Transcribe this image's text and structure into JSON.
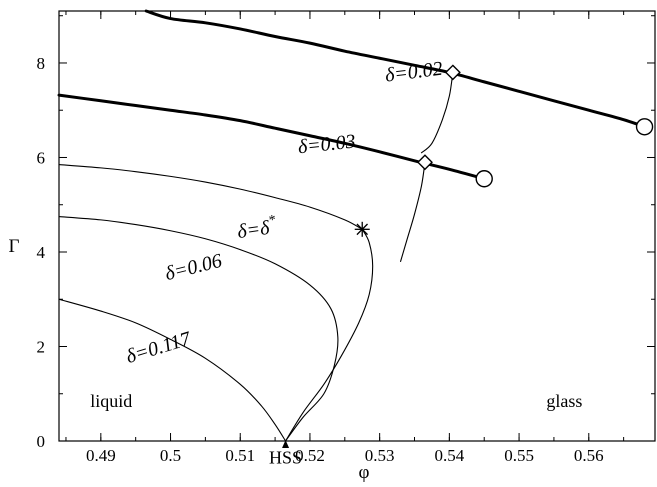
{
  "chart_data": {
    "type": "line",
    "xlabel": "φ",
    "ylabel": "Γ",
    "xlim": [
      0.484,
      0.5695
    ],
    "ylim": [
      0,
      9.1
    ],
    "xticks": [
      "0.49",
      "0.5",
      "0.51",
      "0.52",
      "0.53",
      "0.54",
      "0.55",
      "0.56"
    ],
    "yticks": [
      "0",
      "2",
      "4",
      "6",
      "8"
    ],
    "grid": false,
    "series": [
      {
        "name": "δ=0.02",
        "label_text": "δ=0.02",
        "style": "thick",
        "x": [
          0.4965,
          0.5,
          0.505,
          0.51,
          0.515,
          0.52,
          0.525,
          0.53,
          0.535,
          0.54,
          0.545,
          0.55,
          0.555,
          0.56,
          0.565,
          0.568
        ],
        "y": [
          9.1,
          8.94,
          8.85,
          8.72,
          8.56,
          8.42,
          8.25,
          8.1,
          7.95,
          7.8,
          7.6,
          7.4,
          7.2,
          7.0,
          6.8,
          6.65
        ]
      },
      {
        "name": "δ=0.03",
        "label_text": "δ=0.03",
        "style": "thick",
        "x": [
          0.484,
          0.49,
          0.495,
          0.5,
          0.505,
          0.51,
          0.515,
          0.52,
          0.525,
          0.53,
          0.535,
          0.54,
          0.545
        ],
        "y": [
          7.32,
          7.2,
          7.1,
          7.0,
          6.9,
          6.78,
          6.62,
          6.46,
          6.3,
          6.12,
          5.93,
          5.75,
          5.55
        ]
      },
      {
        "name": "δ=δ*",
        "label_text": "δ=δ",
        "label_sup": "*",
        "style": "thin",
        "x": [
          0.484,
          0.49,
          0.495,
          0.5,
          0.505,
          0.51,
          0.515,
          0.52,
          0.525,
          0.5275
        ],
        "y": [
          5.85,
          5.78,
          5.7,
          5.6,
          5.48,
          5.33,
          5.15,
          4.95,
          4.68,
          4.48
        ]
      },
      {
        "name": "δ=δ* continuation",
        "style": "thin",
        "x": [
          0.5275,
          0.5285,
          0.529,
          0.5285,
          0.527,
          0.5245,
          0.522,
          0.519,
          0.5165
        ],
        "y": [
          4.48,
          4.2,
          3.7,
          3.1,
          2.5,
          1.8,
          1.2,
          0.6,
          0.0
        ]
      },
      {
        "name": "δ=0.06",
        "label_text": "δ=0.06",
        "style": "thin",
        "x": [
          0.484,
          0.49,
          0.495,
          0.5,
          0.505,
          0.51,
          0.515,
          0.52,
          0.523,
          0.524,
          0.5235,
          0.522,
          0.519,
          0.5165
        ],
        "y": [
          4.75,
          4.68,
          4.58,
          4.45,
          4.28,
          4.05,
          3.75,
          3.3,
          2.8,
          2.2,
          1.6,
          1.0,
          0.5,
          0.0
        ]
      },
      {
        "name": "δ=0.117",
        "label_text": "δ=0.117",
        "style": "thin",
        "x": [
          0.484,
          0.49,
          0.495,
          0.5,
          0.505,
          0.51,
          0.513,
          0.515,
          0.5165
        ],
        "y": [
          3.0,
          2.75,
          2.5,
          2.15,
          1.75,
          1.2,
          0.75,
          0.35,
          0.0
        ]
      },
      {
        "name": "diamond line δ=0.02",
        "style": "thin",
        "x": [
          0.5405,
          0.54,
          0.539,
          0.5375,
          0.536
        ],
        "y": [
          7.8,
          7.3,
          6.8,
          6.3,
          6.1
        ]
      },
      {
        "name": "diamond line δ=0.03",
        "style": "thin",
        "x": [
          0.5365,
          0.536,
          0.535,
          0.534,
          0.533
        ],
        "y": [
          5.9,
          5.4,
          4.8,
          4.3,
          3.8
        ]
      }
    ],
    "markers": [
      {
        "type": "circle",
        "x": 0.568,
        "y": 6.65
      },
      {
        "type": "circle",
        "x": 0.545,
        "y": 5.55
      },
      {
        "type": "diamond",
        "x": 0.5405,
        "y": 7.8
      },
      {
        "type": "diamond",
        "x": 0.5365,
        "y": 5.9
      },
      {
        "type": "star",
        "x": 0.5275,
        "y": 4.48
      }
    ],
    "curve_labels": [
      {
        "series": 0,
        "x": 0.535,
        "y": 7.68,
        "angle": -7
      },
      {
        "series": 1,
        "x": 0.5225,
        "y": 6.15,
        "angle": -6
      },
      {
        "series": 2,
        "x": 0.5125,
        "y": 4.35,
        "angle": -8
      },
      {
        "series": 4,
        "x": 0.5035,
        "y": 3.55,
        "angle": -14
      },
      {
        "series": 5,
        "x": 0.4985,
        "y": 1.85,
        "angle": -17
      }
    ],
    "annotations": [
      {
        "text": "liquid",
        "x": 0.4915,
        "y": 0.72
      },
      {
        "text": "glass",
        "x": 0.5565,
        "y": 0.72
      },
      {
        "text": "HSS",
        "x": 0.5165,
        "y": -0.48
      }
    ],
    "arrow": {
      "x": 0.5165,
      "y_from": -0.12,
      "y_to": 0.0
    }
  }
}
